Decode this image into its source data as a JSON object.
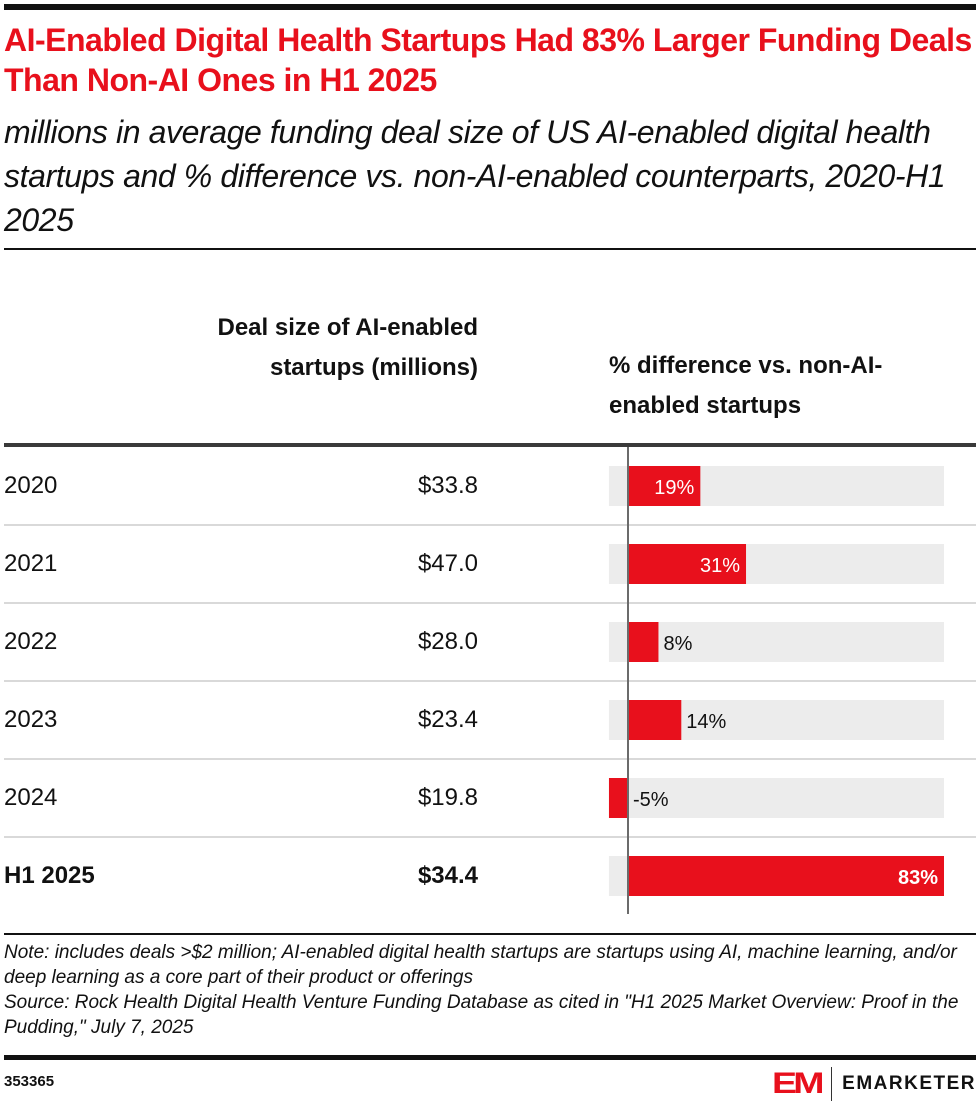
{
  "header": {
    "title": "AI-Enabled Digital Health Startups Had 83% Larger Funding Deals Than Non-AI Ones in H1 2025",
    "subtitle": "millions in average funding deal size of US AI-enabled digital health startups and % difference vs. non-AI-enabled counterparts, 2020-H1 2025"
  },
  "columns": {
    "deal_size": "Deal size of AI-enabled startups (millions)",
    "pct_diff": "% difference vs. non-AI-enabled startups"
  },
  "footer": {
    "note": "Note: includes deals >$2 million; AI-enabled digital health startups are startups using AI, machine learning, and/or deep learning as a core part of their product or offerings",
    "source": "Source: Rock Health Digital Health Venture Funding Database as cited in \"H1 2025 Market Overview: Proof in the Pudding,\" July 7, 2025",
    "chart_id": "353365",
    "brand": "EMARKETER",
    "brand_mark": "EM"
  },
  "colors": {
    "accent": "#e8101c",
    "bar_track": "#ececec",
    "zero_line": "#6b6b6b"
  },
  "chart_data": {
    "type": "table",
    "title": "AI-Enabled Digital Health Startups Had 83% Larger Funding Deals Than Non-AI Ones in H1 2025",
    "subtitle": "millions in average funding deal size of US AI-enabled digital health startups and % difference vs. non-AI-enabled counterparts, 2020-H1 2025",
    "categories": [
      "2020",
      "2021",
      "2022",
      "2023",
      "2024",
      "H1 2025"
    ],
    "series": [
      {
        "name": "Deal size of AI-enabled startups (millions)",
        "values": [
          33.8,
          47.0,
          28.0,
          23.4,
          19.8,
          34.4
        ],
        "labels": [
          "$33.8",
          "$47.0",
          "$28.0",
          "$23.4",
          "$19.8",
          "$34.4"
        ]
      },
      {
        "name": "% difference vs. non-AI-enabled startups",
        "values": [
          19,
          31,
          8,
          14,
          -5,
          83
        ],
        "labels": [
          "19%",
          "31%",
          "8%",
          "14%",
          "-5%",
          "83%"
        ]
      }
    ],
    "bar_range": [
      -5,
      83
    ],
    "highlighted_row": "H1 2025"
  }
}
